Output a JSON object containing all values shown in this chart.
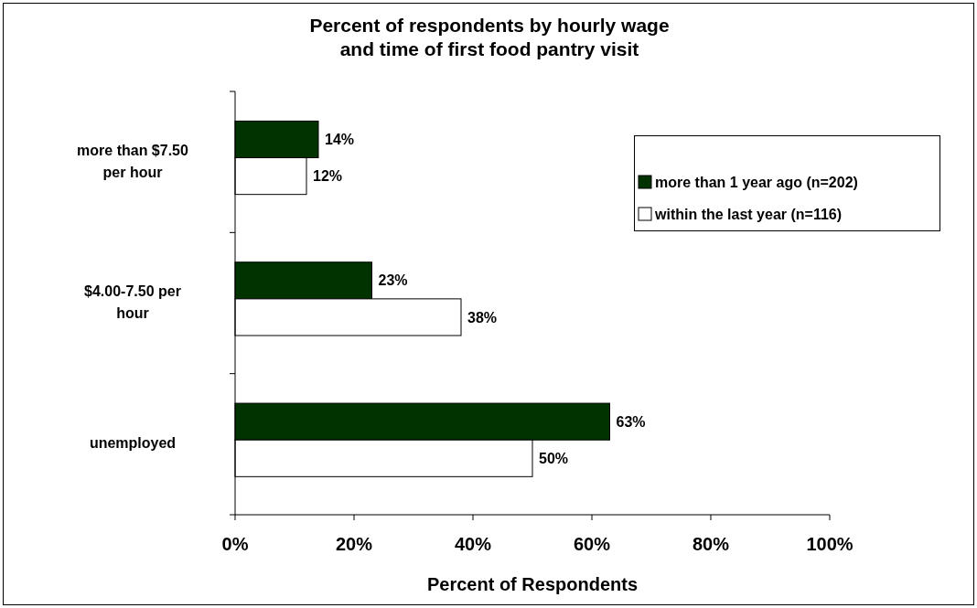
{
  "chart_data": {
    "type": "bar",
    "orientation": "horizontal",
    "title": "Percent of respondents by hourly wage and time of first food pantry visit",
    "xlabel": "Percent of Respondents",
    "categories": [
      "more than $7.50 per hour",
      "$4.00-7.50 per hour",
      "unemployed"
    ],
    "series": [
      {
        "name": "more than 1 year ago (n=202)",
        "color": "#003300",
        "values": [
          14,
          23,
          63
        ],
        "value_labels": [
          "14%",
          "23%",
          "63%"
        ]
      },
      {
        "name": "within the last year (n=116)",
        "color": "#ffffff",
        "values": [
          12,
          38,
          50
        ],
        "value_labels": [
          "12%",
          "38%",
          "50%"
        ]
      }
    ],
    "xlim": [
      0,
      100
    ],
    "xticks": [
      {
        "value": 0,
        "label": "0%"
      },
      {
        "value": 20,
        "label": "20%"
      },
      {
        "value": 40,
        "label": "40%"
      },
      {
        "value": 60,
        "label": "60%"
      },
      {
        "value": 80,
        "label": "80%"
      },
      {
        "value": 100,
        "label": "100%"
      }
    ],
    "legend": "right"
  }
}
